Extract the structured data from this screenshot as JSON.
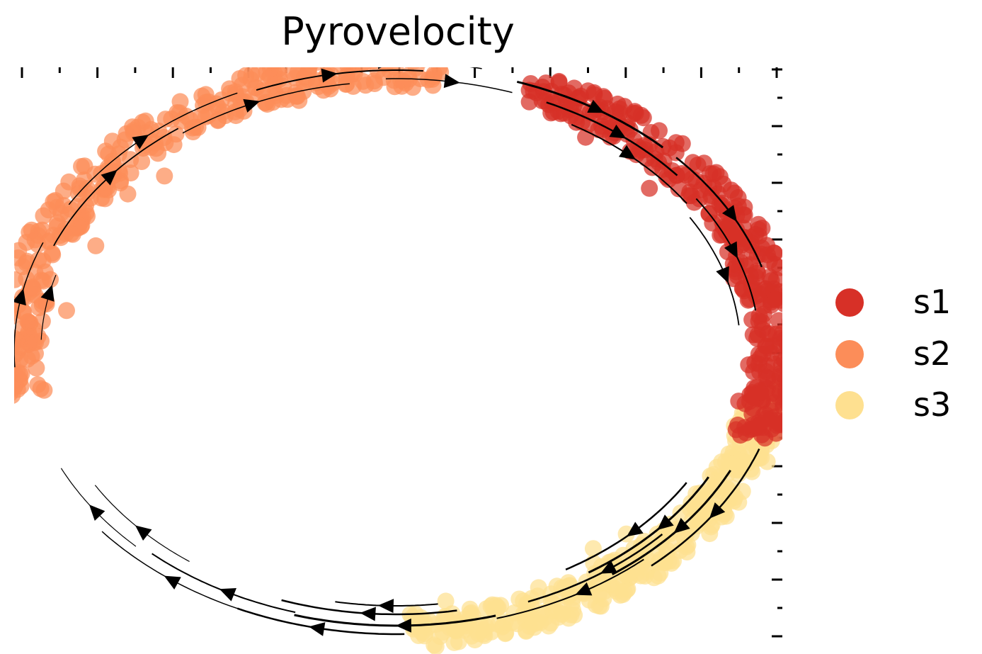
{
  "chart_data": {
    "type": "scatter",
    "title": "Pyrovelocity",
    "xlabel": "",
    "ylabel": "",
    "grid": false,
    "legend_placement": "right",
    "overlay": "streamlines",
    "series": [
      {
        "name": "s1",
        "color": "#d73027",
        "theta_range": [
          -1.22,
          0.32
        ]
      },
      {
        "name": "s2",
        "color": "#fc8d59",
        "theta_range": [
          -3.3,
          -1.45
        ]
      },
      {
        "name": "s3",
        "color": "#fee090",
        "theta_range": [
          -4.75,
          -6.15
        ]
      }
    ]
  }
}
